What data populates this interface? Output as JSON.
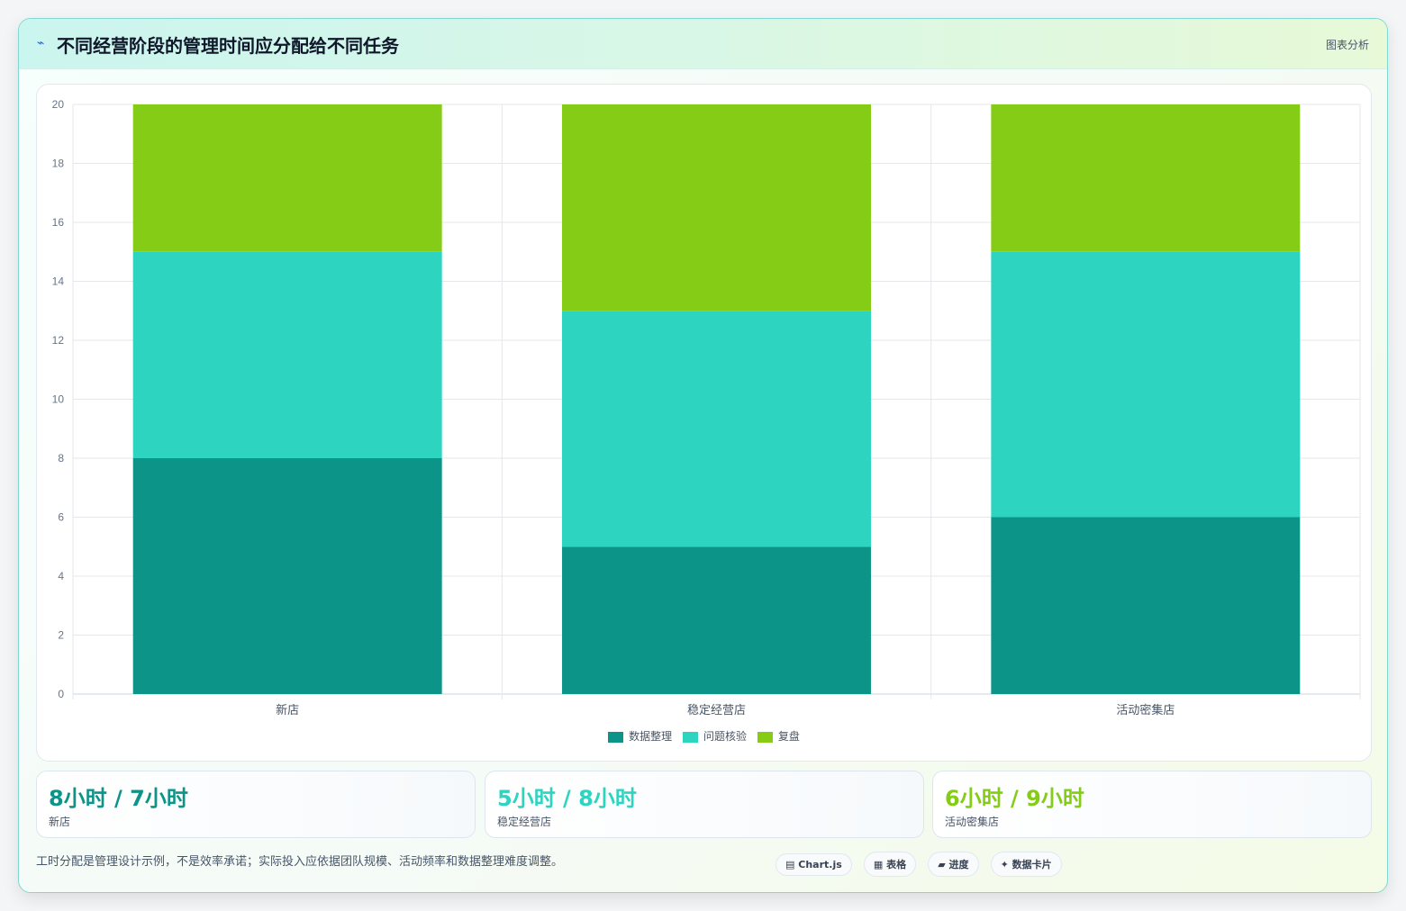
{
  "header": {
    "icon": "lightning-icon",
    "title": "不同经营阶段的管理时间应分配给不同任务",
    "tag": "图表分析"
  },
  "chart_data": {
    "type": "bar",
    "stacked": true,
    "categories": [
      "新店",
      "稳定经营店",
      "活动密集店"
    ],
    "series": [
      {
        "name": "数据整理",
        "color": "#0d9488",
        "values": [
          8,
          5,
          6
        ]
      },
      {
        "name": "问题核验",
        "color": "#2dd4bf",
        "values": [
          7,
          8,
          9
        ]
      },
      {
        "name": "复盘",
        "color": "#84cc16",
        "values": [
          5,
          7,
          5
        ]
      }
    ],
    "ylim": [
      0,
      20
    ],
    "yticks": [
      0,
      2,
      4,
      6,
      8,
      10,
      12,
      14,
      16,
      18,
      20
    ],
    "grid": true,
    "legend": "bottom"
  },
  "stats": [
    {
      "value": "8小时 / 7小时",
      "label": "新店",
      "color": "#0d9488"
    },
    {
      "value": "5小时 / 8小时",
      "label": "稳定经营店",
      "color": "#2dd4bf"
    },
    {
      "value": "6小时 / 9小时",
      "label": "活动密集店",
      "color": "#84cc16"
    }
  ],
  "footnote": "工时分配是管理设计示例，不是效率承诺；实际投入应依据团队规模、活动频率和数据整理难度调整。",
  "pills": [
    {
      "icon": "chart-icon",
      "glyph": "▤",
      "label": "Chart.js"
    },
    {
      "icon": "table-icon",
      "glyph": "▦",
      "label": "表格"
    },
    {
      "icon": "progress-icon",
      "glyph": "▰",
      "label": "进度"
    },
    {
      "icon": "sparkle-icon",
      "glyph": "✦",
      "label": "数据卡片"
    }
  ]
}
